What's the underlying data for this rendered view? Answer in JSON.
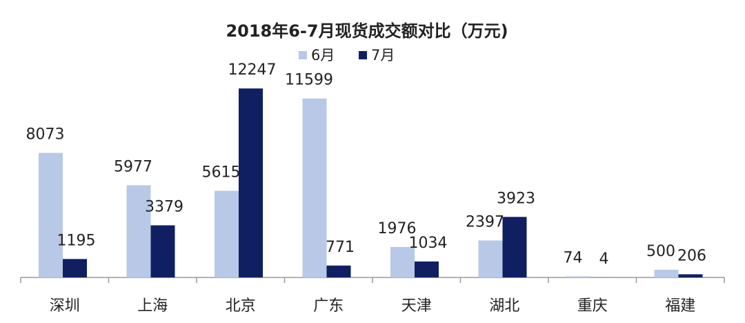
{
  "chart_data": {
    "type": "bar",
    "title": "2018年6-7月现货成交额对比（万元)",
    "categories": [
      "深圳",
      "上海",
      "北京",
      "广东",
      "天津",
      "湖北",
      "重庆",
      "福建"
    ],
    "series": [
      {
        "name": "6月",
        "color": "#b7c9e6",
        "values": [
          8073,
          5977,
          5615,
          11599,
          1976,
          2397,
          74,
          500
        ]
      },
      {
        "name": "7月",
        "color": "#0f1f62",
        "values": [
          1195,
          3379,
          12247,
          771,
          1034,
          3923,
          4,
          206
        ]
      }
    ],
    "ylim": [
      0,
      14000
    ],
    "legend": "top"
  }
}
